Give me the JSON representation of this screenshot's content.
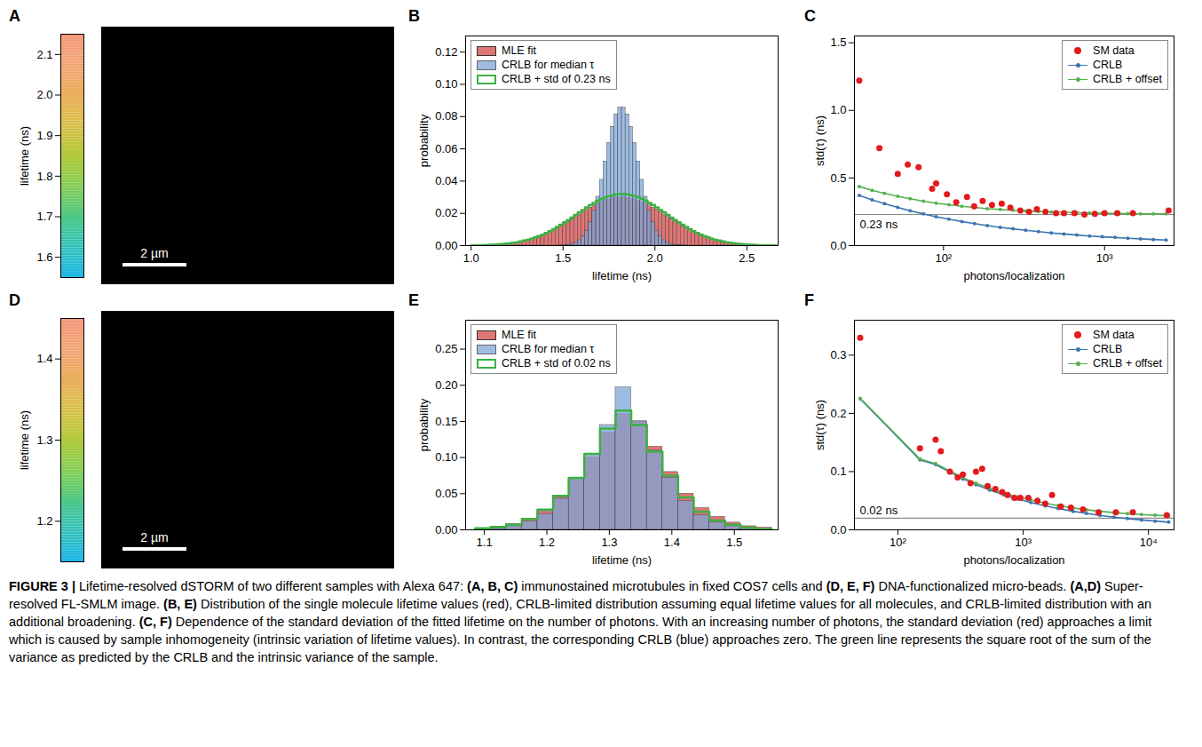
{
  "chart_data": [
    {
      "panel": "A",
      "type": "image",
      "colorbar": {
        "label": "lifetime (ns)",
        "lim": [
          1.55,
          2.15
        ],
        "ticks": [
          1.6,
          1.7,
          1.8,
          1.9,
          {
            "value": 2,
            "label": "2.0"
          },
          2.1
        ]
      },
      "scale_bar": "2 µm"
    },
    {
      "panel": "B",
      "type": "histogram",
      "xlabel": "lifetime (ns)",
      "ylabel": "probability",
      "xlim": [
        0.97,
        2.67
      ],
      "xticks": [
        {
          "value": 1,
          "label": "1.0"
        },
        1.5,
        {
          "value": 2,
          "label": "2.0"
        },
        2.5
      ],
      "ylim": [
        0,
        0.13
      ],
      "yticks": [
        {
          "value": 0,
          "label": "0.00"
        },
        0.02,
        0.04,
        0.06,
        0.08,
        {
          "value": 0.1,
          "label": "0.10"
        },
        0.12
      ],
      "legend": "top left",
      "bins": [
        1,
        1.02,
        1.04,
        1.06,
        1.08,
        1.1,
        1.12,
        1.14,
        1.16,
        1.18,
        1.2,
        1.22,
        1.24,
        1.26,
        1.28,
        1.3,
        1.32,
        1.34,
        1.36,
        1.38,
        1.4,
        1.42,
        1.44,
        1.46,
        1.48,
        1.5,
        1.52,
        1.54,
        1.56,
        1.58,
        1.6,
        1.62,
        1.64,
        1.66,
        1.68,
        1.7,
        1.72,
        1.74,
        1.76,
        1.78,
        1.8,
        1.82,
        1.84,
        1.86,
        1.88,
        1.9,
        1.92,
        1.94,
        1.96,
        1.98,
        2,
        2.02,
        2.04,
        2.06,
        2.08,
        2.1,
        2.12,
        2.14,
        2.16,
        2.18,
        2.2,
        2.22,
        2.24,
        2.26,
        2.28,
        2.3,
        2.32,
        2.34,
        2.36,
        2.38,
        2.4,
        2.42,
        2.44,
        2.46,
        2.48,
        2.5,
        2.52,
        2.54,
        2.56,
        2.58,
        2.6,
        2.62,
        2.64,
        2.66
      ],
      "series": [
        {
          "name": "MLE fit",
          "type": "bar",
          "color": "#e07575",
          "values": [
            0.0001,
            0.0002,
            0.0002,
            0.0003,
            0.0004,
            0.0005,
            0.0006,
            0.0007,
            0.0009,
            0.0011,
            0.0014,
            0.0017,
            0.002,
            0.0024,
            0.0029,
            0.0034,
            0.0041,
            0.0048,
            0.0056,
            0.0064,
            0.0074,
            0.0085,
            0.0096,
            0.0108,
            0.0121,
            0.0135,
            0.0149,
            0.0164,
            0.0178,
            0.0193,
            0.0208,
            0.0222,
            0.0236,
            0.0249,
            0.0261,
            0.0271,
            0.0285,
            0.0284,
            0.0297,
            0.0301,
            0.0296,
            0.0303,
            0.0295,
            0.0292,
            0.029,
            0.0276,
            0.0271,
            0.0261,
            0.0249,
            0.0236,
            0.0222,
            0.0208,
            0.0193,
            0.0178,
            0.0164,
            0.0149,
            0.0135,
            0.0121,
            0.0108,
            0.0096,
            0.0085,
            0.0074,
            0.0064,
            0.0056,
            0.0048,
            0.0041,
            0.0034,
            0.0029,
            0.0024,
            0.002,
            0.0017,
            0.0014,
            0.0011,
            0.0009,
            0.0007,
            0.0006,
            0.0005,
            0.0004,
            0.0003,
            0.0002,
            0.0002,
            0.0001,
            0.0001
          ]
        },
        {
          "name": "CRLB for median τ",
          "type": "bar",
          "color": "#7ea6d8",
          "values": [
            0,
            0,
            0,
            0,
            0,
            0,
            0,
            0,
            0,
            0,
            0,
            0,
            0,
            0,
            0,
            0,
            0,
            0,
            0,
            0,
            0,
            0,
            0,
            0,
            0.0001,
            0.0002,
            0.0005,
            0.001,
            0.0018,
            0.0033,
            0.0057,
            0.0093,
            0.0145,
            0.0215,
            0.0303,
            0.0408,
            0.0522,
            0.0636,
            0.0737,
            0.0814,
            0.0855,
            0.0855,
            0.0814,
            0.0737,
            0.0636,
            0.0522,
            0.0408,
            0.0303,
            0.0215,
            0.0145,
            0.0093,
            0.0057,
            0.0033,
            0.0018,
            0.001,
            0.0005,
            0.0002,
            0.0001,
            0,
            0,
            0,
            0,
            0,
            0,
            0,
            0,
            0,
            0,
            0,
            0,
            0,
            0,
            0,
            0,
            0,
            0,
            0,
            0,
            0,
            0,
            0,
            0,
            0
          ]
        },
        {
          "name": "CRLB + std of 0.23 ns",
          "type": "step",
          "color": "#3cb043",
          "values": [
            0.0001,
            0.0002,
            0.0002,
            0.0003,
            0.0004,
            0.0005,
            0.0006,
            0.0008,
            0.001,
            0.0012,
            0.0014,
            0.0018,
            0.0021,
            0.0026,
            0.0031,
            0.0036,
            0.0043,
            0.0051,
            0.0059,
            0.0068,
            0.0079,
            0.009,
            0.0102,
            0.0115,
            0.0129,
            0.0144,
            0.0159,
            0.0174,
            0.019,
            0.0206,
            0.0221,
            0.0237,
            0.0252,
            0.0265,
            0.0278,
            0.0289,
            0.0299,
            0.0307,
            0.0313,
            0.0318,
            0.032,
            0.032,
            0.0318,
            0.0313,
            0.0307,
            0.0299,
            0.0289,
            0.0278,
            0.0265,
            0.0252,
            0.0237,
            0.0221,
            0.0206,
            0.019,
            0.0174,
            0.0159,
            0.0144,
            0.0129,
            0.0115,
            0.0102,
            0.009,
            0.0079,
            0.0068,
            0.0059,
            0.0051,
            0.0043,
            0.0036,
            0.0031,
            0.0026,
            0.0021,
            0.0018,
            0.0014,
            0.0012,
            0.001,
            0.0008,
            0.0006,
            0.0005,
            0.0004,
            0.0003,
            0.0002,
            0.0002,
            0.0001,
            0.0001
          ]
        }
      ]
    },
    {
      "panel": "C",
      "type": "line",
      "log": "x",
      "xlabel": "photons/localization",
      "ylabel": "std(τ) (ns)",
      "xlim": [
        28,
        2700
      ],
      "xticks": [
        {
          "value": 100,
          "label": "10²"
        },
        {
          "value": 1000,
          "label": "10³"
        }
      ],
      "ylim": [
        0,
        1.55
      ],
      "yticks": [
        {
          "value": 0,
          "label": "0.0"
        },
        0.5,
        {
          "value": 1,
          "label": "1.0"
        },
        1.5
      ],
      "legend": "top right",
      "annotations": [
        {
          "y": 0.23,
          "text": "0.23 ns"
        }
      ],
      "series": [
        {
          "name": "SM data",
          "type": "scatter",
          "color": "#e41a1c",
          "x": [
            30,
            40,
            52,
            60,
            70,
            85,
            90,
            105,
            120,
            140,
            155,
            175,
            200,
            230,
            260,
            300,
            340,
            380,
            430,
            500,
            560,
            650,
            750,
            870,
            1000,
            1200,
            1500,
            2500
          ],
          "values": [
            1.22,
            0.72,
            0.53,
            0.6,
            0.58,
            0.42,
            0.46,
            0.38,
            0.32,
            0.36,
            0.29,
            0.33,
            0.3,
            0.31,
            0.28,
            0.26,
            0.25,
            0.27,
            0.25,
            0.24,
            0.24,
            0.24,
            0.23,
            0.235,
            0.24,
            0.24,
            0.24,
            0.26
          ]
        },
        {
          "name": "CRLB",
          "type": "line",
          "marker": "dot",
          "color": "#3b75af",
          "x": [
            30,
            36,
            43,
            52,
            62,
            75,
            90,
            108,
            130,
            156,
            187,
            225,
            270,
            324,
            389,
            467,
            560,
            672,
            807,
            968,
            1162,
            1394,
            1673,
            2008,
            2410
          ],
          "values": [
            0.371,
            0.338,
            0.31,
            0.282,
            0.258,
            0.234,
            0.214,
            0.195,
            0.178,
            0.163,
            0.148,
            0.135,
            0.124,
            0.113,
            0.103,
            0.094,
            0.086,
            0.078,
            0.071,
            0.065,
            0.06,
            0.054,
            0.05,
            0.045,
            0.041
          ]
        },
        {
          "name": "CRLB + offset",
          "type": "line",
          "marker": "dot",
          "color": "#55b04f",
          "x": [
            30,
            36,
            43,
            52,
            62,
            75,
            90,
            108,
            130,
            156,
            187,
            225,
            270,
            324,
            389,
            467,
            560,
            672,
            807,
            968,
            1162,
            1394,
            1673,
            2008,
            2410
          ],
          "values": [
            0.436,
            0.409,
            0.386,
            0.364,
            0.346,
            0.328,
            0.314,
            0.302,
            0.291,
            0.282,
            0.273,
            0.267,
            0.261,
            0.256,
            0.252,
            0.248,
            0.246,
            0.243,
            0.241,
            0.239,
            0.238,
            0.236,
            0.235,
            0.234,
            0.234
          ]
        }
      ]
    },
    {
      "panel": "D",
      "type": "image",
      "colorbar": {
        "label": "lifetime (ns)",
        "lim": [
          1.15,
          1.45
        ],
        "ticks": [
          1.2,
          1.3,
          1.4
        ]
      },
      "scale_bar": "2 µm"
    },
    {
      "panel": "E",
      "type": "histogram",
      "xlabel": "lifetime (ns)",
      "ylabel": "probability",
      "xlim": [
        1.07,
        1.57
      ],
      "xticks": [
        1.1,
        1.2,
        1.3,
        1.4,
        1.5
      ],
      "ylim": [
        0,
        0.29
      ],
      "yticks": [
        {
          "value": 0,
          "label": "0.00"
        },
        0.05,
        {
          "value": 0.1,
          "label": "0.10"
        },
        0.15,
        {
          "value": 0.2,
          "label": "0.20"
        },
        0.25
      ],
      "legend": "top left",
      "bins": [
        1.085,
        1.11,
        1.135,
        1.16,
        1.185,
        1.21,
        1.235,
        1.26,
        1.285,
        1.31,
        1.335,
        1.36,
        1.385,
        1.41,
        1.435,
        1.46,
        1.485,
        1.51,
        1.535,
        1.56
      ],
      "series": [
        {
          "name": "MLE fit",
          "type": "bar",
          "color": "#e07575",
          "values": [
            0.002,
            0.004,
            0.008,
            0.015,
            0.025,
            0.045,
            0.068,
            0.1,
            0.135,
            0.16,
            0.15,
            0.115,
            0.08,
            0.05,
            0.03,
            0.018,
            0.01,
            0.005,
            0.003
          ]
        },
        {
          "name": "CRLB for median τ",
          "type": "bar",
          "color": "#7ea6d8",
          "values": [
            0.001,
            0.002,
            0.005,
            0.012,
            0.022,
            0.043,
            0.07,
            0.105,
            0.145,
            0.197,
            0.15,
            0.11,
            0.072,
            0.04,
            0.02,
            0.01,
            0.005,
            0.002,
            0.001
          ]
        },
        {
          "name": "CRLB + std of 0.02 ns",
          "type": "step",
          "color": "#3cb043",
          "values": [
            0.002,
            0.004,
            0.007,
            0.015,
            0.028,
            0.047,
            0.072,
            0.105,
            0.14,
            0.165,
            0.145,
            0.108,
            0.075,
            0.045,
            0.025,
            0.013,
            0.007,
            0.003,
            0.001
          ]
        }
      ]
    },
    {
      "panel": "F",
      "type": "line",
      "log": "x",
      "xlabel": "photons/localization",
      "ylabel": "std(τ) (ns)",
      "xlim": [
        45,
        16000
      ],
      "xticks": [
        {
          "value": 100,
          "label": "10²"
        },
        {
          "value": 1000,
          "label": "10³"
        },
        {
          "value": 10000,
          "label": "10⁴"
        }
      ],
      "ylim": [
        0,
        0.36
      ],
      "yticks": [
        {
          "value": 0,
          "label": "0.0"
        },
        0.1,
        0.2,
        0.3
      ],
      "legend": "top right",
      "annotations": [
        {
          "y": 0.02,
          "text": "0.02 ns"
        }
      ],
      "series": [
        {
          "name": "SM data",
          "type": "scatter",
          "color": "#e41a1c",
          "x": [
            50,
            150,
            200,
            220,
            260,
            300,
            330,
            380,
            420,
            470,
            520,
            600,
            680,
            750,
            850,
            950,
            1100,
            1300,
            1500,
            1700,
            2000,
            2400,
            3000,
            4000,
            5500,
            7500,
            14000
          ],
          "values": [
            0.33,
            0.14,
            0.155,
            0.135,
            0.1,
            0.09,
            0.095,
            0.08,
            0.1,
            0.105,
            0.075,
            0.07,
            0.065,
            0.06,
            0.055,
            0.055,
            0.055,
            0.05,
            0.045,
            0.06,
            0.04,
            0.038,
            0.035,
            0.03,
            0.03,
            0.03,
            0.025
          ]
        },
        {
          "name": "CRLB",
          "type": "line",
          "marker": "dot",
          "color": "#3b75af",
          "x": [
            50,
            150,
            200,
            260,
            330,
            420,
            540,
            700,
            900,
            1150,
            1500,
            1900,
            2500,
            3200,
            4100,
            5300,
            6800,
            8800,
            11300,
            14500
          ],
          "values": [
            0.225,
            0.12,
            0.112,
            0.099,
            0.0875,
            0.0776,
            0.0684,
            0.0601,
            0.053,
            0.0469,
            0.0411,
            0.0365,
            0.0318,
            0.0281,
            0.0248,
            0.0218,
            0.0193,
            0.0169,
            0.015,
            0.0132
          ]
        },
        {
          "name": "CRLB + offset",
          "type": "line",
          "marker": "dot",
          "color": "#55b04f",
          "x": [
            50,
            150,
            200,
            260,
            330,
            420,
            540,
            700,
            900,
            1150,
            1500,
            1900,
            2500,
            3200,
            4100,
            5300,
            6800,
            8800,
            11300,
            14500
          ],
          "values": [
            0.2259,
            0.1217,
            0.1138,
            0.101,
            0.0898,
            0.0801,
            0.0713,
            0.0633,
            0.0566,
            0.051,
            0.0457,
            0.0416,
            0.0376,
            0.0345,
            0.0319,
            0.0296,
            0.0278,
            0.0262,
            0.025,
            0.024
          ]
        }
      ]
    }
  ],
  "caption": [
    {
      "text": "FIGURE 3 |",
      "bold": true
    },
    {
      "text": " Lifetime-resolved dSTORM of two different samples with Alexa 647: ",
      "bold": false
    },
    {
      "text": "(A, B, C)",
      "bold": true
    },
    {
      "text": " immunostained microtubules in fixed COS7 cells and ",
      "bold": false
    },
    {
      "text": "(D, E, F)",
      "bold": true
    },
    {
      "text": " DNA-functionalized micro-beads. ",
      "bold": false
    },
    {
      "text": "(A,D)",
      "bold": true
    },
    {
      "text": " Super-resolved FL-SMLM image. ",
      "bold": false
    },
    {
      "text": "(B, E)",
      "bold": true
    },
    {
      "text": " Distribution of the single molecule lifetime values (red), CRLB-limited distribution assuming equal lifetime values for all molecules, and CRLB-limited distribution with an additional broadening. ",
      "bold": false
    },
    {
      "text": "(C, F)",
      "bold": true
    },
    {
      "text": " Dependence of the standard deviation of the fitted lifetime on the number of photons. With an increasing number of photons, the standard deviation (red) approaches a limit which is caused by sample inhomogeneity (intrinsic variation of lifetime values). In contrast, the corresponding CRLB (blue) approaches zero. The green line represents the square root of the sum of the variance as predicted by the CRLB and the intrinsic variance of the sample.",
      "bold": false
    }
  ]
}
